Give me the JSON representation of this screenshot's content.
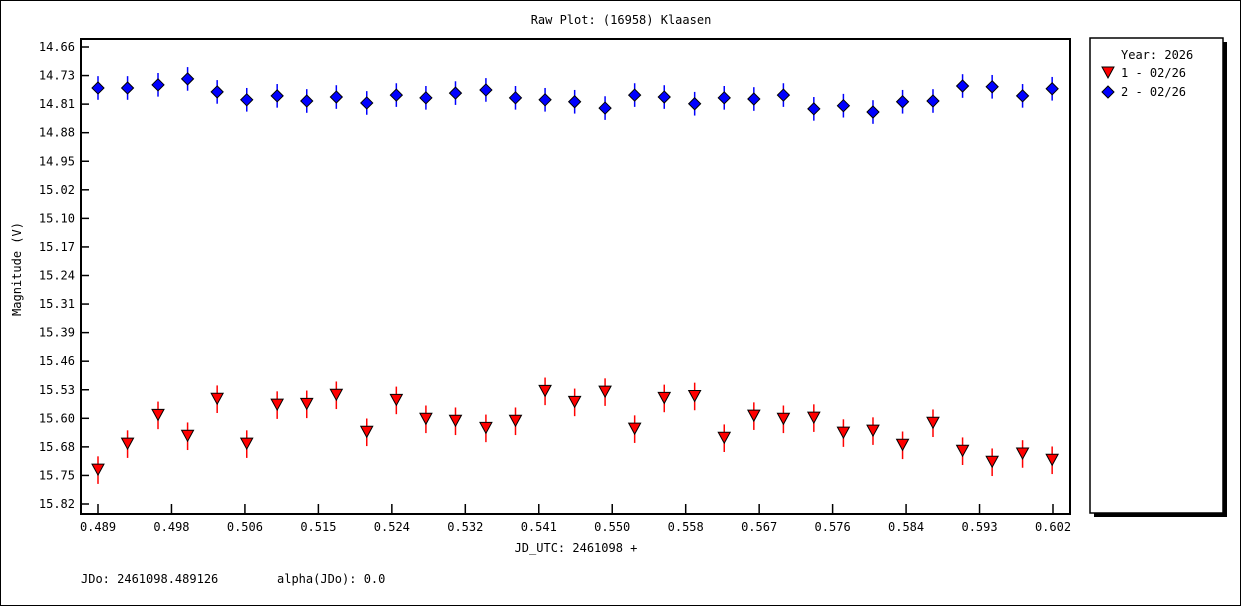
{
  "chart_data": {
    "type": "scatter",
    "title": "Raw Plot: (16958) Klaasen",
    "xlabel": "JD_UTC: 2461098 +",
    "ylabel": "Magnitude (V)",
    "xlim": [
      0.487,
      0.6039
    ],
    "ylim": [
      14.66,
      15.82
    ],
    "y_inverted": true,
    "xticks": [
      "0.489",
      "0.498",
      "0.506",
      "0.515",
      "0.524",
      "0.532",
      "0.541",
      "0.550",
      "0.558",
      "0.567",
      "0.576",
      "0.584",
      "0.593",
      "0.602"
    ],
    "yticks": [
      "14.66",
      "14.73",
      "14.81",
      "14.88",
      "14.95",
      "15.02",
      "15.10",
      "15.17",
      "15.24",
      "15.31",
      "15.39",
      "15.46",
      "15.53",
      "15.60",
      "15.68",
      "15.75",
      "15.82"
    ],
    "legend": {
      "title": "Year: 2026",
      "position": "right-outside"
    },
    "x": [
      0.489,
      0.4925,
      0.4961,
      0.4996,
      0.5031,
      0.5066,
      0.5102,
      0.5137,
      0.5172,
      0.5208,
      0.5243,
      0.5278,
      0.5313,
      0.5349,
      0.5384,
      0.5419,
      0.5454,
      0.549,
      0.5525,
      0.556,
      0.5596,
      0.5631,
      0.5666,
      0.5701,
      0.5737,
      0.5772,
      0.5807,
      0.5842,
      0.5878,
      0.5913,
      0.5948,
      0.5984,
      0.6019
    ],
    "series": [
      {
        "name": "1 - 02/26",
        "color": "#ff0000",
        "marker": "triangle-down",
        "error": 0.035,
        "values": [
          15.734,
          15.668,
          15.595,
          15.648,
          15.554,
          15.668,
          15.569,
          15.567,
          15.544,
          15.638,
          15.557,
          15.605,
          15.61,
          15.628,
          15.61,
          15.534,
          15.562,
          15.536,
          15.63,
          15.552,
          15.547,
          15.653,
          15.597,
          15.605,
          15.602,
          15.64,
          15.635,
          15.671,
          15.615,
          15.686,
          15.714,
          15.693,
          15.709
        ]
      },
      {
        "name": "2 - 02/26",
        "color": "#0000ff",
        "marker": "diamond",
        "error": 0.03,
        "values": [
          14.764,
          14.764,
          14.756,
          14.741,
          14.774,
          14.794,
          14.784,
          14.797,
          14.787,
          14.802,
          14.782,
          14.789,
          14.777,
          14.769,
          14.789,
          14.794,
          14.799,
          14.815,
          14.782,
          14.787,
          14.804,
          14.789,
          14.792,
          14.782,
          14.817,
          14.809,
          14.825,
          14.799,
          14.797,
          14.759,
          14.761,
          14.784,
          14.766
        ]
      }
    ]
  },
  "footer": {
    "jdo": "JDo: 2461098.489126",
    "alpha": "alpha(JDo): 0.0"
  }
}
